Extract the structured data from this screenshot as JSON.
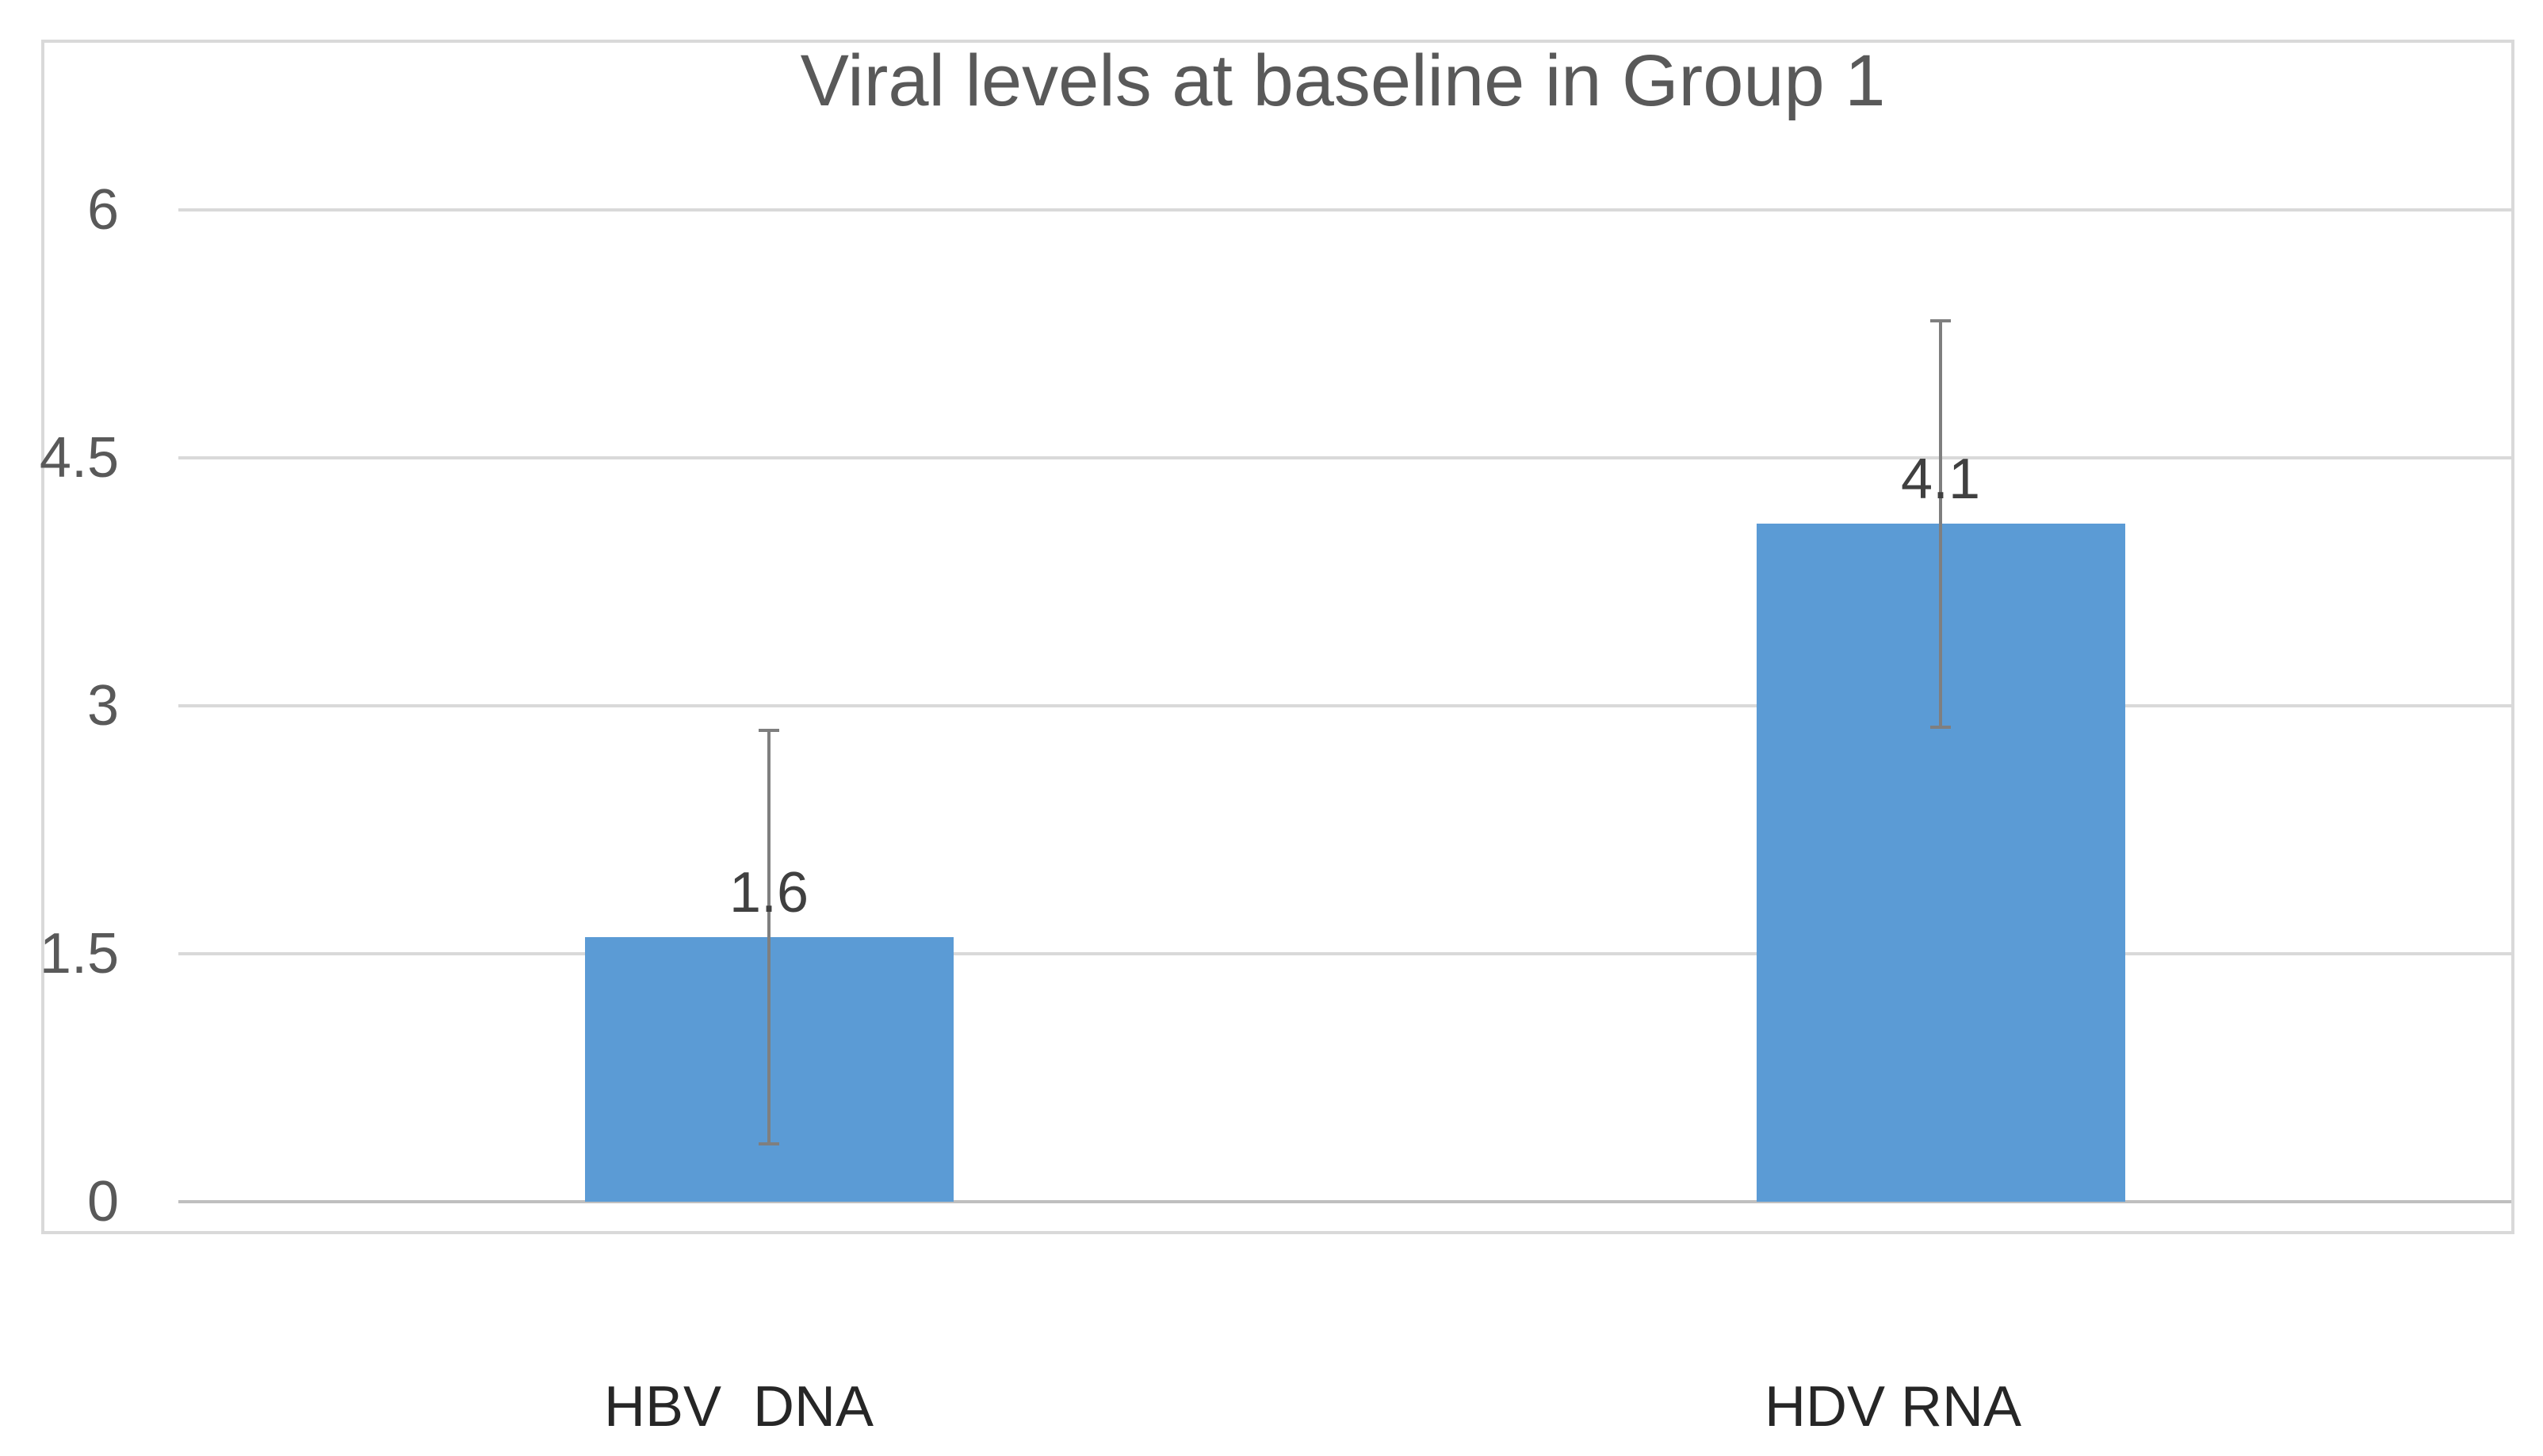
{
  "chart_data": {
    "type": "bar",
    "title": "Viral levels at baseline in Group 1",
    "categories": [
      "HBV  DNA",
      "HDV RNA"
    ],
    "values": [
      1.6,
      4.1
    ],
    "data_labels": [
      "1.6",
      "4.1"
    ],
    "error_bars": {
      "plus": [
        1.25,
        1.23
      ],
      "minus": [
        1.25,
        1.23
      ]
    },
    "y_ticks": [
      {
        "label": "6",
        "value": 6
      },
      {
        "label": "4.5",
        "value": 4.5
      },
      {
        "label": "3",
        "value": 3
      },
      {
        "label": "1.5",
        "value": 1.5
      },
      {
        "label": "0",
        "value": 0
      }
    ],
    "ylim": [
      0,
      6
    ],
    "y_step": 1.5,
    "xlabel": "",
    "ylabel": "",
    "grid": true,
    "legend": false,
    "colors": {
      "bar_fill": "#5B9BD5",
      "gridline": "#D9D9D9",
      "zero_line": "#BFBFBF",
      "plot_frame": "#D9D9D9",
      "error_bar": "#7F7F7F",
      "title_text": "#595959",
      "tick_text": "#595959",
      "data_label_text": "#404040",
      "category_text": "#262626",
      "background": "#FFFFFF"
    }
  }
}
